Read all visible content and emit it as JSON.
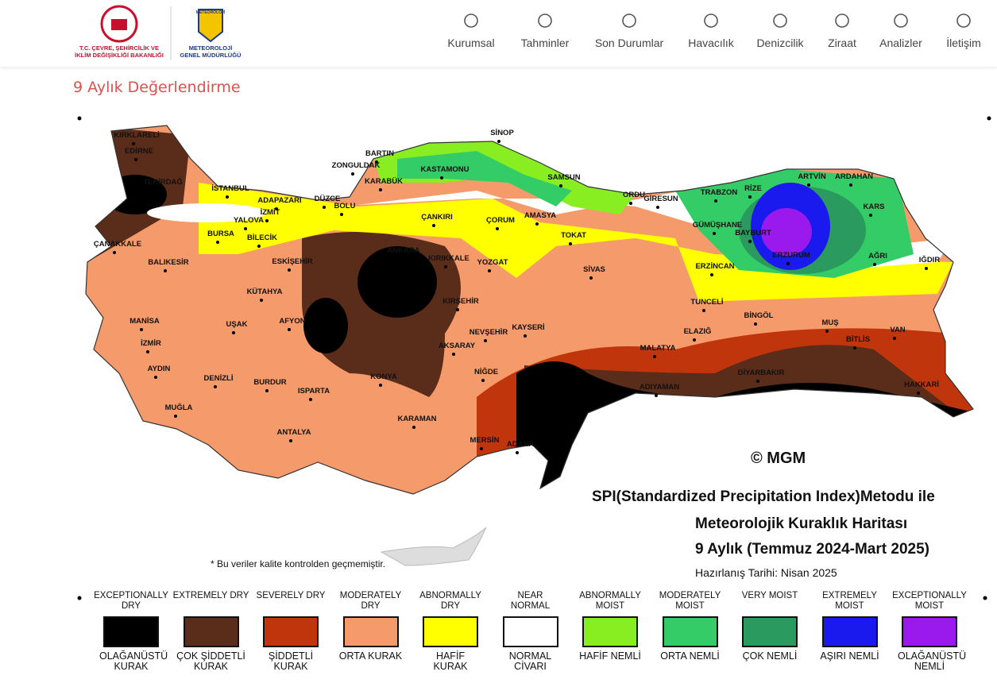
{
  "header": {
    "ministry_line1": "T.C. ÇEVRE, ŞEHİRCİLİK VE",
    "ministry_line2": "İKLİM DEĞİŞİKLİĞİ BAKANLIĞI",
    "badge": "METEOROLOJİ",
    "agency_line1": "METEOROLOJİ",
    "agency_line2": "GENEL MÜDÜRLÜĞÜ"
  },
  "nav": [
    "Kurumsal",
    "Tahminler",
    "Son Durumlar",
    "Havacılık",
    "Denizcilik",
    "Ziraat",
    "Analizler",
    "İletişim"
  ],
  "page_title": "9 Aylık Değerlendirme",
  "map": {
    "title_lines": [
      "SPI(Standardized Precipitation Index)Metodu ile",
      "Meteorolojik Kuraklık Haritası",
      "9 Aylık (Temmuz 2024-Mart 2025)"
    ],
    "prepared": "Hazırlanış Tarihi: Nisan 2025",
    "credit": "© MGM",
    "note": "* Bu veriler kalite kontrolden geçmemiştir.",
    "cities": [
      "KIRKLARELİ",
      "EDİRNE",
      "TEKİRDAĞ",
      "İSTANBUL",
      "ÇANAKKALE",
      "BALIKESİR",
      "BURSA",
      "YALOVA",
      "İZMİT",
      "ADAPAZARI",
      "DÜZCE",
      "BOLU",
      "BİLECİK",
      "ESKİŞEHİR",
      "ZONGULDAK",
      "BARTIN",
      "KARABÜK",
      "KASTAMONU",
      "SİNOP",
      "SAMSUN",
      "ÇANKIRI",
      "ÇORUM",
      "AMASYA",
      "TOKAT",
      "ORDU",
      "GİRESUN",
      "TRABZON",
      "RİZE",
      "ARTVİN",
      "ARDAHAN",
      "KARS",
      "GÜMÜŞHANE",
      "BAYBURT",
      "ERZURUM",
      "AĞRI",
      "IĞDIR",
      "ERZİNCAN",
      "ANKARA",
      "KIRIKKALE",
      "YOZGAT",
      "SİVAS",
      "KÜTAHYA",
      "MANİSA",
      "İZMİR",
      "UŞAK",
      "AFYON",
      "KIRŞEHİR",
      "NEVŞEHİR",
      "KAYSERİ",
      "AKSARAY",
      "TUNCELİ",
      "BİNGÖL",
      "MUŞ",
      "BİTLİS",
      "VAN",
      "ELAZIĞ",
      "MALATYA",
      "DİYARBAKIR",
      "AYDIN",
      "DENİZLİ",
      "BURDUR",
      "ISPARTA",
      "KONYA",
      "NİĞDE",
      "ADIYAMAN",
      "HAKKARİ",
      "MUĞLA",
      "KARAMAN",
      "ANTALYA",
      "MERSİN",
      "ADANA"
    ]
  },
  "legend": [
    {
      "en": "EXCEPTIONALLY DRY",
      "tr": "OLAĞANÜSTÜ KURAK",
      "color": "#000000"
    },
    {
      "en": "EXTREMELY DRY",
      "tr": "ÇOK ŞİDDETLİ KURAK",
      "color": "#5a2c1a"
    },
    {
      "en": "SEVERELY DRY",
      "tr": "ŞİDDETLİ KURAK",
      "color": "#c0350c"
    },
    {
      "en": "MODERATELY DRY",
      "tr": "ORTA KURAK",
      "color": "#f59a6a"
    },
    {
      "en": "ABNORMALLY DRY",
      "tr": "HAFİF KURAK",
      "color": "#ffff00"
    },
    {
      "en": "NEAR NORMAL",
      "tr": "NORMAL CİVARI",
      "color": "#ffffff"
    },
    {
      "en": "ABNORMALLY MOIST",
      "tr": "HAFİF NEMLİ",
      "color": "#88ee22"
    },
    {
      "en": "MODERATELY MOIST",
      "tr": "ORTA NEMLİ",
      "color": "#33cc66"
    },
    {
      "en": "VERY MOIST",
      "tr": "ÇOK NEMLİ",
      "color": "#2a9a5e"
    },
    {
      "en": "EXTREMELY MOIST",
      "tr": "AŞIRI NEMLİ",
      "color": "#1a1aee"
    },
    {
      "en": "EXCEPTIONALLY MOIST",
      "tr": "OLAĞANÜSTÜ NEMLİ",
      "color": "#9a1aee"
    }
  ]
}
